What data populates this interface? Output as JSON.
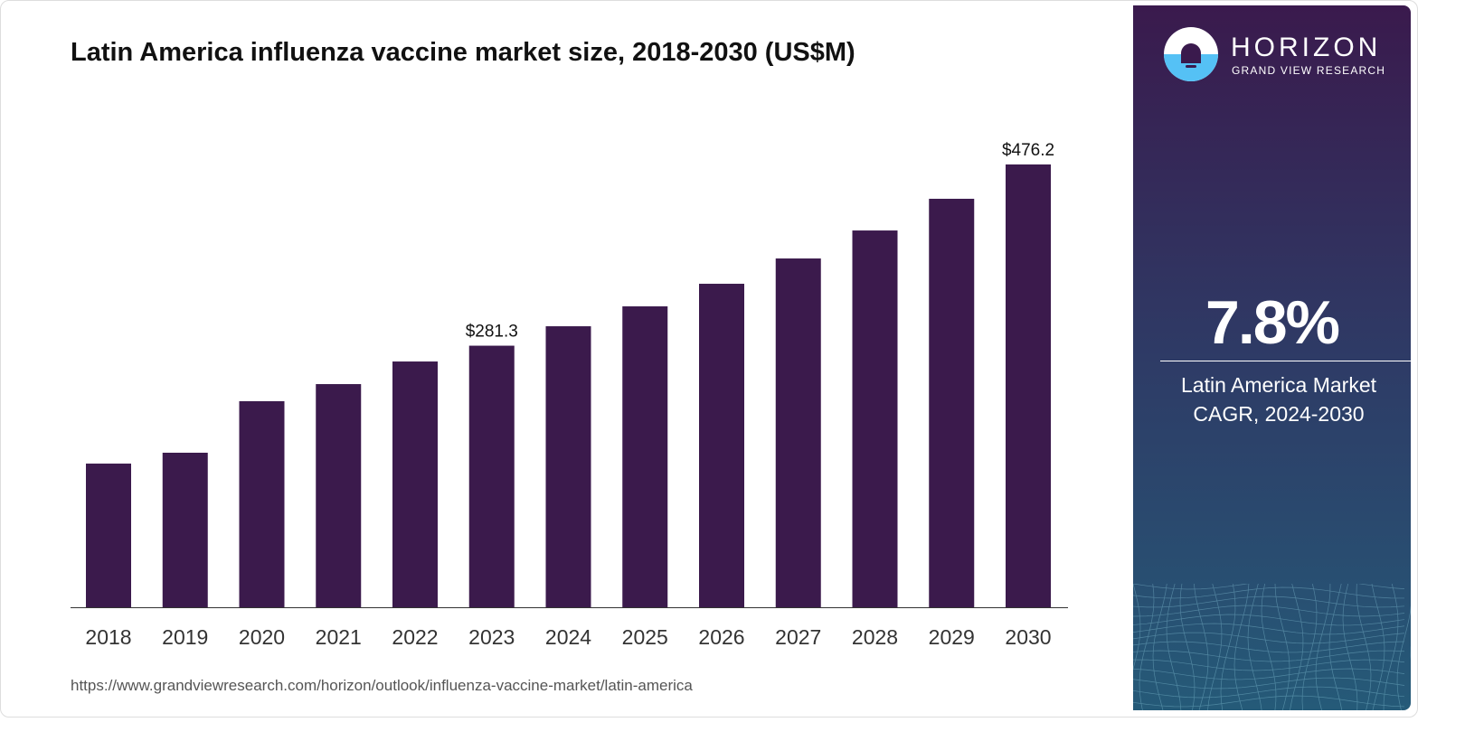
{
  "chart_data": {
    "type": "bar",
    "title": "Latin America influenza vaccine market size, 2018-2030 (US$M)",
    "categories": [
      "2018",
      "2019",
      "2020",
      "2021",
      "2022",
      "2023",
      "2024",
      "2025",
      "2026",
      "2027",
      "2028",
      "2029",
      "2030"
    ],
    "values": [
      154.5,
      166.2,
      221.6,
      240.0,
      264.3,
      281.3,
      302.2,
      323.6,
      347.9,
      375.1,
      405.2,
      439.3,
      476.2
    ],
    "data_labels": {
      "2023": "$281.3",
      "2030": "$476.2"
    },
    "xlabel": "",
    "ylabel": "",
    "ylim": [
      0,
      476.2
    ],
    "grid": false,
    "bar_color": "#3b1a4c"
  },
  "source_url": "https://www.grandviewresearch.com/horizon/outlook/influenza-vaccine-market/latin-america",
  "panel": {
    "brand": "HORIZON",
    "brand_sub": "GRAND VIEW RESEARCH",
    "cagr_value": "7.8%",
    "cagr_label_line1": "Latin America Market",
    "cagr_label_line2": "CAGR, 2024-2030",
    "colors": {
      "top": "#3a1a4d",
      "bottom": "#255a78",
      "logo_accent": "#55c1f5"
    }
  }
}
